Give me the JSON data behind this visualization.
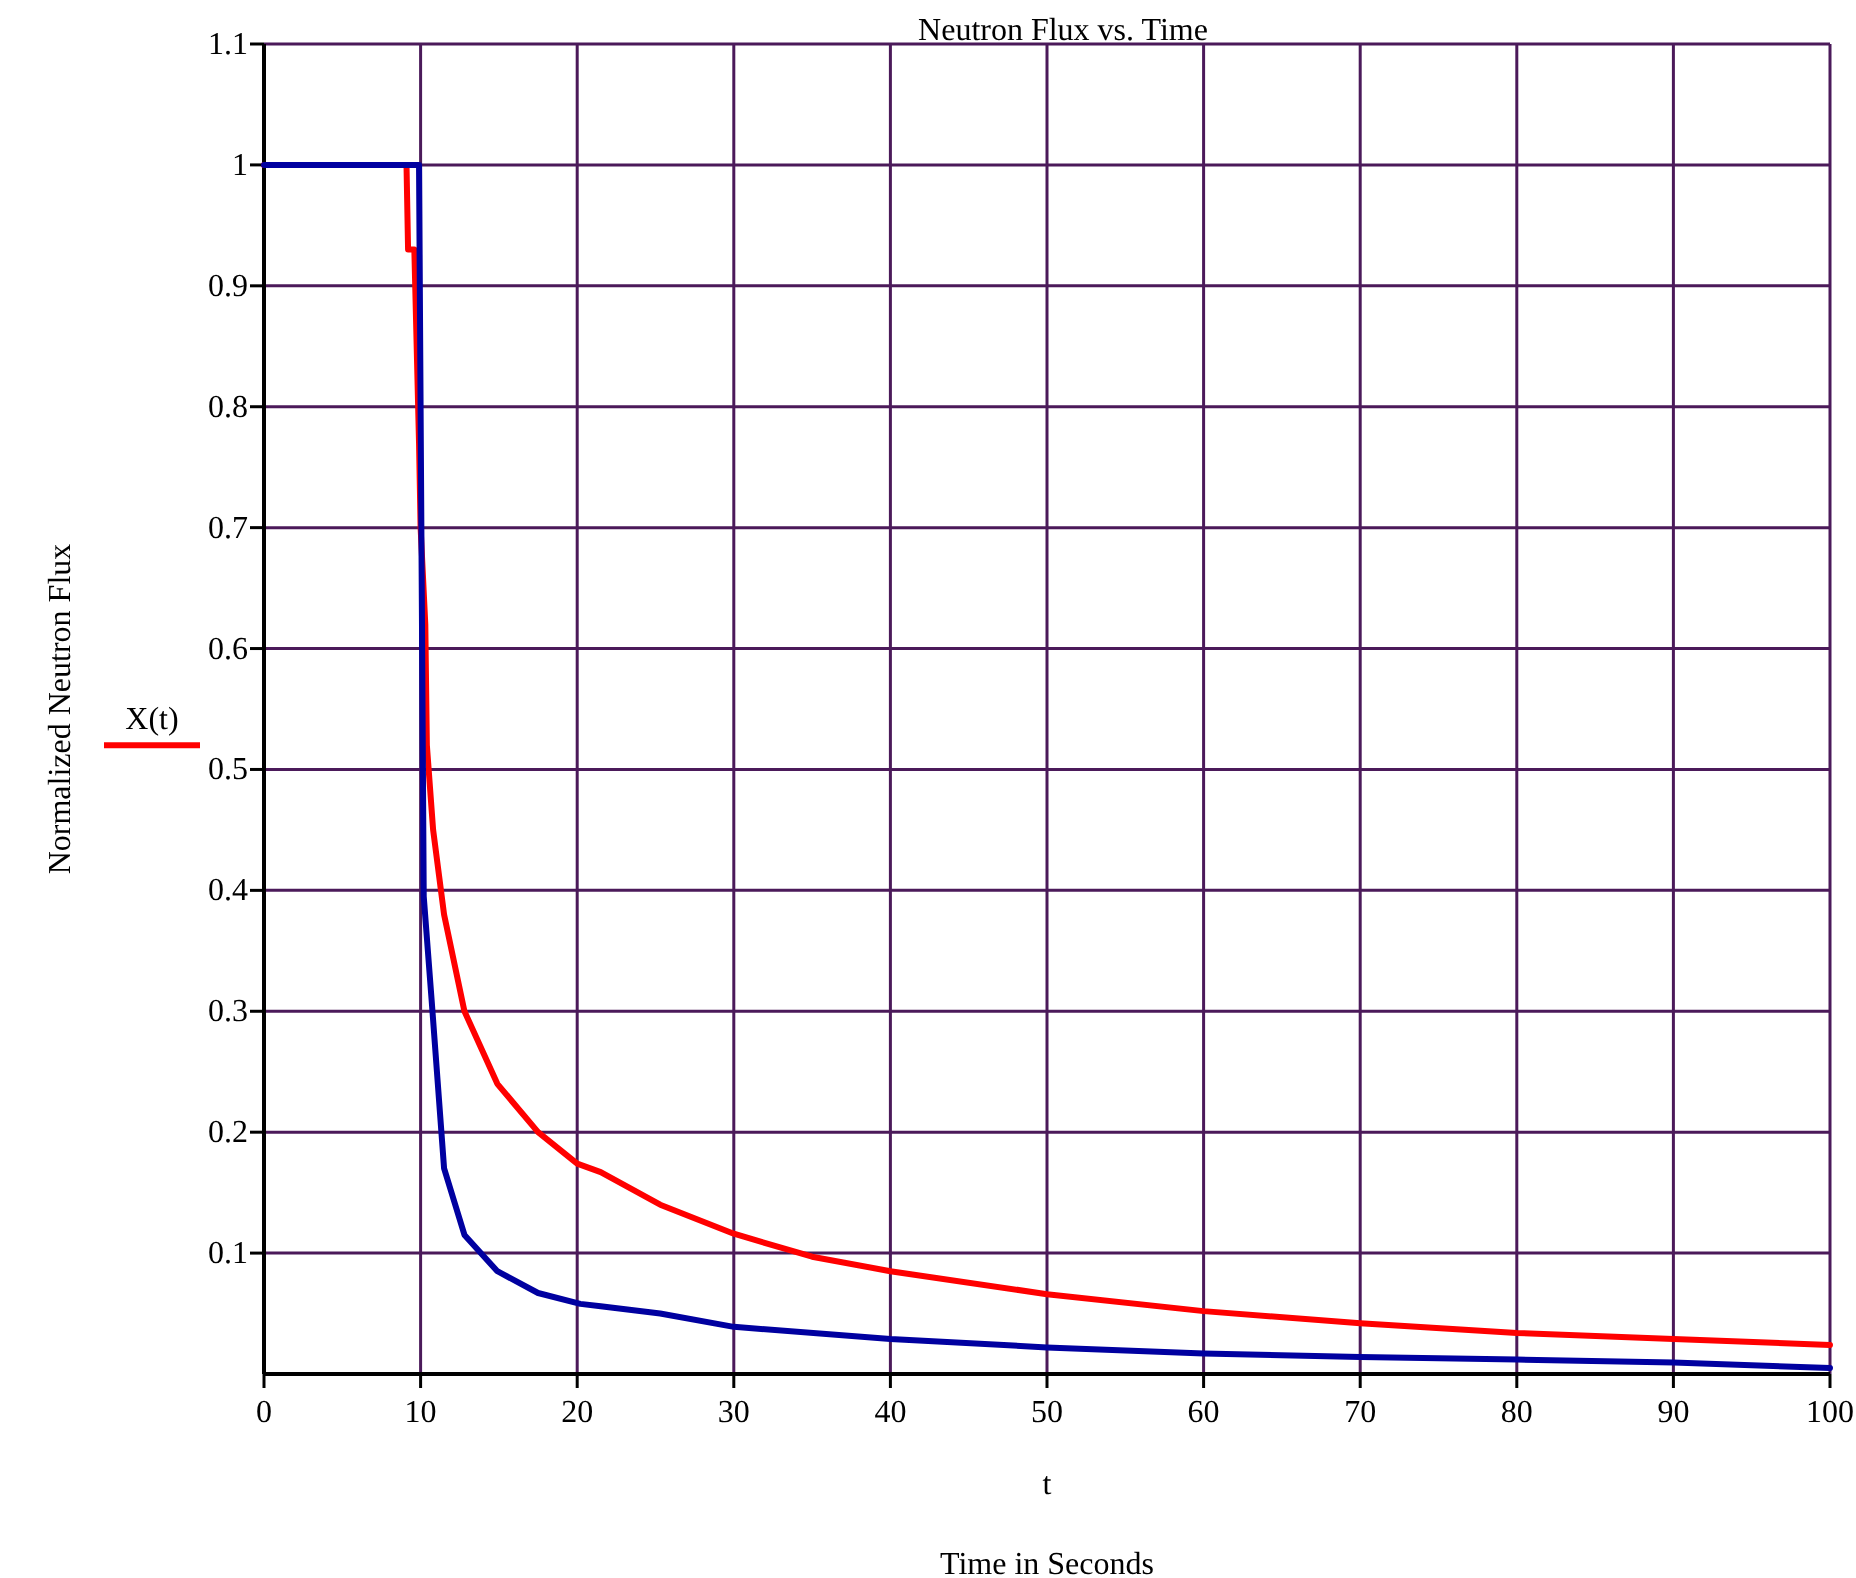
{
  "chart_data": {
    "type": "line",
    "title": "Neutron Flux vs. Time",
    "xlabel": "t",
    "ylabel": "Normalized Neutron Flux",
    "annotations": [
      "Time in Seconds"
    ],
    "xlim": [
      0,
      100
    ],
    "xticks": [
      0,
      10,
      20,
      30,
      40,
      50,
      60,
      70,
      80,
      90,
      100
    ],
    "ylim": [
      0,
      1.1
    ],
    "yticks": [
      0.1,
      0.2,
      0.3,
      0.4,
      0.5,
      0.6,
      0.7,
      0.8,
      0.9,
      1,
      1.1
    ],
    "grid": true,
    "legend": "left",
    "marker": "none",
    "line_style": "solid",
    "series": [
      {
        "name": "X(t)",
        "color": "#ff0000",
        "x": [
          0,
          9.1,
          9.2,
          9.6,
          9.9,
          10,
          10.3,
          10.4,
          10.8,
          11.5,
          12.8,
          14.9,
          17.5,
          20,
          21.5,
          25.3,
          30,
          35,
          40,
          50,
          60,
          70,
          80,
          90,
          100
        ],
        "values": [
          1,
          1,
          0.93,
          0.93,
          0.77,
          0.7,
          0.62,
          0.52,
          0.45,
          0.38,
          0.3,
          0.24,
          0.2,
          0.174,
          0.167,
          0.14,
          0.116,
          0.097,
          0.085,
          0.066,
          0.052,
          0.042,
          0.034,
          0.029,
          0.024
        ]
      },
      {
        "color": "#0000a0",
        "x": [
          0,
          9.9,
          10.2,
          10.7,
          11.5,
          12.8,
          14.9,
          17.5,
          20.2,
          21.5,
          25.3,
          30,
          40,
          50,
          60,
          70,
          80,
          90,
          100
        ],
        "values": [
          1,
          1,
          0.395,
          0.31,
          0.17,
          0.115,
          0.085,
          0.067,
          0.058,
          0.056,
          0.05,
          0.039,
          0.029,
          0.022,
          0.017,
          0.014,
          0.012,
          0.0095,
          0.005
        ]
      }
    ]
  }
}
